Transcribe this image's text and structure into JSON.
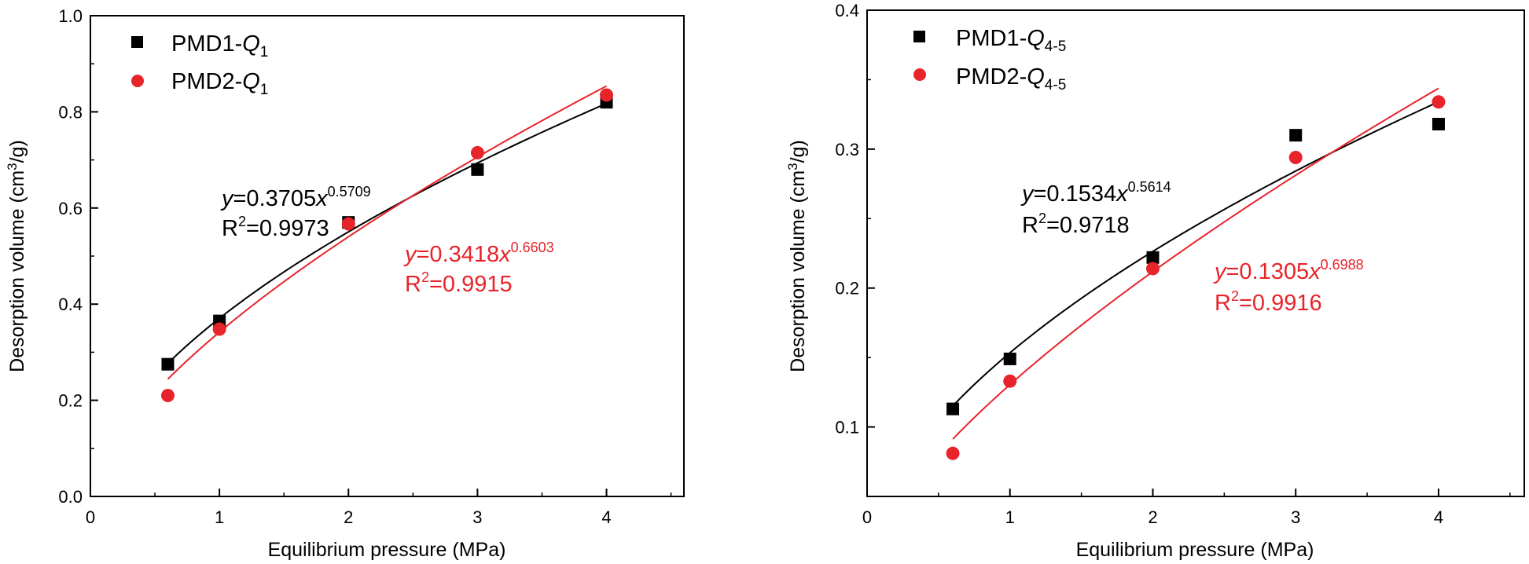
{
  "chart_data": [
    {
      "type": "scatter",
      "xlabel": "Equilibrium pressure (MPa)",
      "ylabel": "Desorption volume (cm³/g)",
      "xlim": [
        0,
        4.6
      ],
      "ylim": [
        0,
        1.0
      ],
      "xticks": [
        0,
        1,
        2,
        3,
        4
      ],
      "yticks": [
        0.0,
        0.2,
        0.4,
        0.6,
        0.8,
        1.0
      ],
      "ytick_labels": [
        "0.0",
        "0.2",
        "0.4",
        "0.6",
        "0.8",
        "1.0"
      ],
      "grid": false,
      "legend_position": "top-left",
      "series": [
        {
          "name": "PMD1-Q1",
          "marker": "square",
          "color": "#000000",
          "x": [
            0.6,
            1,
            2,
            3,
            4
          ],
          "y": [
            0.275,
            0.365,
            0.57,
            0.68,
            0.82
          ],
          "fit": {
            "a": 0.3705,
            "b": 0.5709,
            "equation": "y=0.3705x^0.5709",
            "r2": "R²=0.9973"
          }
        },
        {
          "name": "PMD2-Q1",
          "marker": "circle",
          "color": "#e8242b",
          "x": [
            0.6,
            1,
            2,
            3,
            4
          ],
          "y": [
            0.21,
            0.348,
            0.567,
            0.715,
            0.835
          ],
          "fit": {
            "a": 0.3418,
            "b": 0.6603,
            "equation": "y=0.3418x^0.6603",
            "r2": "R²=0.9915"
          }
        }
      ]
    },
    {
      "type": "scatter",
      "xlabel": "Equilibrium pressure (MPa)",
      "ylabel": "Desorption volume (cm³/g)",
      "xlim": [
        0,
        4.6
      ],
      "ylim": [
        0.05,
        0.4
      ],
      "xticks": [
        0,
        1,
        2,
        3,
        4
      ],
      "yticks": [
        0.1,
        0.2,
        0.3,
        0.4
      ],
      "ytick_labels": [
        "0.1",
        "0.2",
        "0.3",
        "0.4"
      ],
      "grid": false,
      "legend_position": "top-left",
      "series": [
        {
          "name": "PMD1-Q4-5",
          "marker": "square",
          "color": "#000000",
          "x": [
            0.6,
            1,
            2,
            3,
            4
          ],
          "y": [
            0.113,
            0.149,
            0.222,
            0.31,
            0.318
          ],
          "fit": {
            "a": 0.1534,
            "b": 0.5614,
            "equation": "y=0.1534x^0.5614",
            "r2": "R²=0.9718"
          }
        },
        {
          "name": "PMD2-Q4-5",
          "marker": "circle",
          "color": "#e8242b",
          "x": [
            0.6,
            1,
            2,
            3,
            4
          ],
          "y": [
            0.081,
            0.133,
            0.214,
            0.294,
            0.334
          ],
          "fit": {
            "a": 0.1305,
            "b": 0.6988,
            "equation": "y=0.1305x^0.6988",
            "r2": "R²=0.9916"
          }
        }
      ]
    }
  ]
}
